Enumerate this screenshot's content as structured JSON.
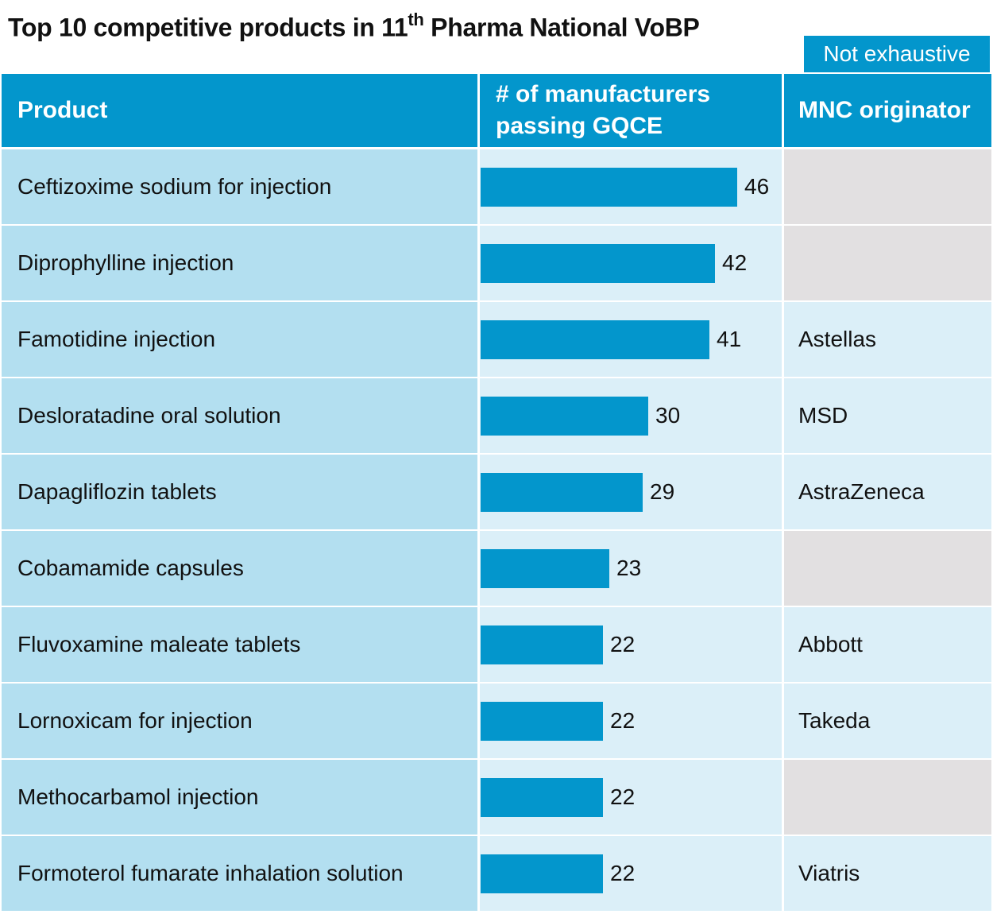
{
  "header": {
    "title_main": "Top 10 competitive products in 11",
    "title_sup": "th",
    "title_rest": " Pharma National VoBP",
    "tag": "Not exhaustive"
  },
  "chart_data": {
    "type": "bar",
    "orientation": "horizontal",
    "title": "Top 10 competitive products in 11th Pharma National VoBP",
    "columns": [
      "Product",
      "# of manufacturers passing GQCE",
      "MNC originator"
    ],
    "categories": [
      "Ceftizoxime sodium for injection",
      "Diprophylline injection",
      "Famotidine injection",
      "Desloratadine oral solution",
      "Dapagliflozin tablets",
      "Cobamamide capsules",
      "Fluvoxamine maleate tablets",
      "Lornoxicam for injection",
      "Methocarbamol injection",
      "Formoterol fumarate inhalation solution"
    ],
    "values": [
      46,
      42,
      41,
      30,
      29,
      23,
      22,
      22,
      22,
      22
    ],
    "mnc_originator": [
      "",
      "",
      "Astellas",
      "MSD",
      "AstraZeneca",
      "",
      "Abbott",
      "Takeda",
      "",
      "Viatris"
    ],
    "xlim": [
      0,
      46
    ],
    "colors": {
      "bar": "#0396cc",
      "product_bg": "#b3dff0",
      "cell_bg": "#dbeff8",
      "empty_bg": "#e2e0e1"
    }
  },
  "table": {
    "col_product": "Product",
    "col_manufacturers_line1": "# of manufacturers",
    "col_manufacturers_line2": "passing GQCE",
    "col_mnc": "MNC originator"
  }
}
